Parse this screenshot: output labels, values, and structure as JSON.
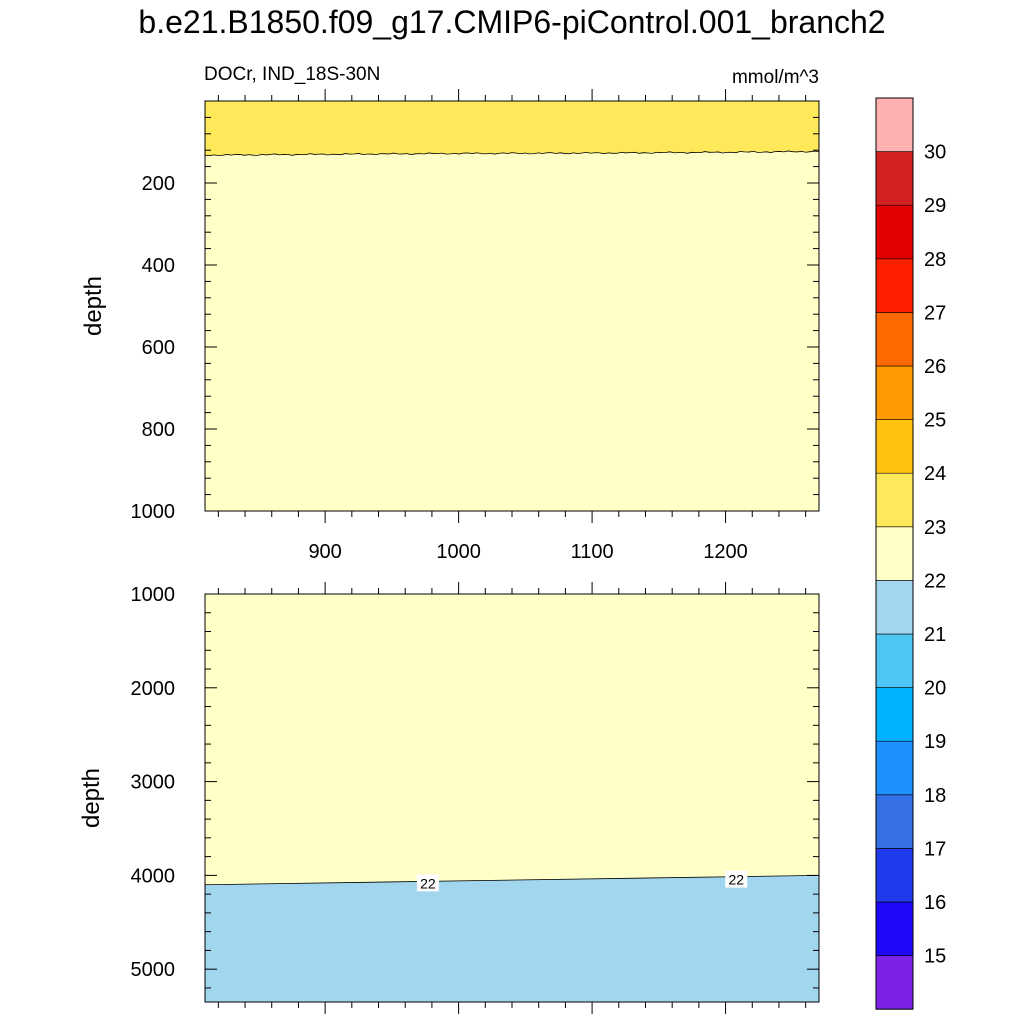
{
  "title": "b.e21.B1850.f09_g17.CMIP6-piControl.001_branch2",
  "subtitle_left": "DOCr, IND_18S-30N",
  "subtitle_right": "mmol/m^3",
  "colorbar": {
    "levels": [
      15,
      16,
      17,
      18,
      19,
      20,
      21,
      22,
      23,
      24,
      25,
      26,
      27,
      28,
      29,
      30
    ],
    "colors": [
      "#7b22e6",
      "#2008f8",
      "#1f3bec",
      "#3570e6",
      "#1e90ff",
      "#00b2ff",
      "#4ec6f4",
      "#a2d6ef",
      "#ffffc8",
      "#ffe85a",
      "#ffc211",
      "#ff9a00",
      "#ff6a00",
      "#ff2000",
      "#e30000",
      "#d32022",
      "#ffb0b1"
    ]
  },
  "chart_data": [
    {
      "type": "contour",
      "panel": "upper",
      "ylabel": "depth",
      "xlim": [
        810,
        1270
      ],
      "ylim": [
        1000,
        0
      ],
      "x_ticks": [
        900,
        1000,
        1100,
        1200
      ],
      "y_ticks": [
        200,
        400,
        600,
        800,
        1000
      ],
      "regions": [
        {
          "range": "23-24",
          "color": "#ffe85a",
          "from_depth": 0,
          "to_depth_boundary": true
        },
        {
          "range": "22-23",
          "color": "#ffffc8",
          "from_depth_boundary": true,
          "to_depth": 1000
        }
      ],
      "boundary_23": {
        "x": [
          810,
          900,
          1000,
          1100,
          1200,
          1270
        ],
        "depth": [
          132,
          130,
          128,
          127,
          125,
          123
        ]
      }
    },
    {
      "type": "contour",
      "panel": "lower",
      "ylabel": "depth",
      "xlim": [
        810,
        1270
      ],
      "ylim": [
        5350,
        1000
      ],
      "y_ticks": [
        1000,
        2000,
        3000,
        4000,
        5000
      ],
      "regions": [
        {
          "range": "22-23",
          "color": "#ffffc8",
          "from_depth": 1000,
          "to_depth_boundary": true
        },
        {
          "range": "21-22",
          "color": "#a2d6ef",
          "from_depth_boundary": true,
          "to_depth": 5350
        }
      ],
      "boundary_22": {
        "x": [
          810,
          1270
        ],
        "depth": [
          4100,
          4000
        ]
      },
      "contour_labels": [
        {
          "text": "22",
          "x": 977,
          "depth": 4085
        },
        {
          "text": "22",
          "x": 1208,
          "depth": 4045
        }
      ]
    }
  ]
}
